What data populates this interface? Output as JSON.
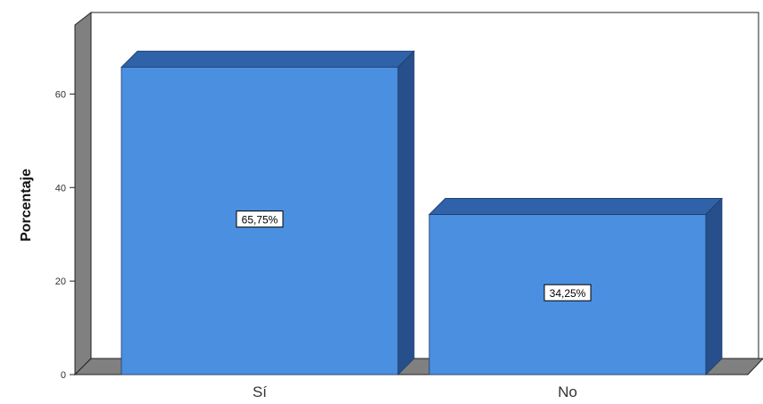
{
  "chart_data": {
    "type": "bar",
    "categories": [
      "Sí",
      "No"
    ],
    "values": [
      65.75,
      34.25
    ],
    "data_labels": [
      "65,75%",
      "34,25%"
    ],
    "ylabel": "Porcentaje",
    "xlabel": "",
    "ylim": [
      0,
      70
    ],
    "yticks": [
      "0",
      "20",
      "40",
      "60"
    ],
    "grid": false,
    "legend": "none",
    "style": "3d",
    "colors": {
      "bar_front": "#4a8fe0",
      "bar_top": "#2f62a8",
      "bar_side": "#274f8c",
      "wall": "#808080",
      "floor": "#808080",
      "outline": "#1f3d6b"
    }
  }
}
